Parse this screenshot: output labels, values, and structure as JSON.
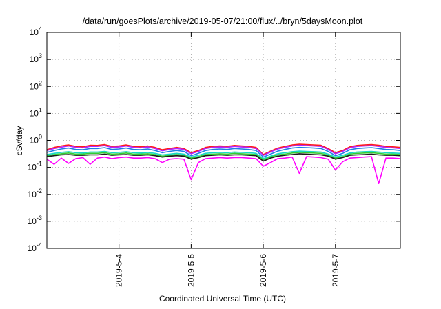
{
  "chart_data": {
    "type": "line",
    "title": "/data/run/goesPlots/archive/2019-05-07/21:00/flux/../bryn/5daysMoon.plot",
    "xlabel": "Coordinated Universal Time (UTC)",
    "ylabel": "cSv/day",
    "yscale": "log",
    "ylim": [
      0.0001,
      10000
    ],
    "xlim": [
      3.0,
      7.9
    ],
    "x_units": "days of May 2019",
    "grid": true,
    "legend": "none",
    "y_ticks": [
      {
        "base": "10",
        "exp": "-4",
        "value": 0.0001
      },
      {
        "base": "10",
        "exp": "-3",
        "value": 0.001
      },
      {
        "base": "10",
        "exp": "-2",
        "value": 0.01
      },
      {
        "base": "10",
        "exp": "-1",
        "value": 0.1
      },
      {
        "base": "10",
        "exp": "0",
        "value": 1
      },
      {
        "base": "10",
        "exp": "1",
        "value": 10
      },
      {
        "base": "10",
        "exp": "2",
        "value": 100
      },
      {
        "base": "10",
        "exp": "3",
        "value": 1000
      },
      {
        "base": "10",
        "exp": "4",
        "value": 10000
      }
    ],
    "x_ticks": [
      {
        "label": "2019-5-4",
        "value": 4
      },
      {
        "label": "2019-5-5",
        "value": 5
      },
      {
        "label": "2019-5-6",
        "value": 6
      },
      {
        "label": "2019-5-7",
        "value": 7
      }
    ],
    "x": [
      3.0,
      3.1,
      3.2,
      3.3,
      3.4,
      3.5,
      3.6,
      3.7,
      3.8,
      3.9,
      4.0,
      4.1,
      4.2,
      4.3,
      4.4,
      4.5,
      4.6,
      4.7,
      4.8,
      4.9,
      5.0,
      5.1,
      5.2,
      5.3,
      5.4,
      5.5,
      5.6,
      5.7,
      5.8,
      5.9,
      6.0,
      6.1,
      6.2,
      6.3,
      6.4,
      6.5,
      6.6,
      6.7,
      6.8,
      6.9,
      7.0,
      7.1,
      7.2,
      7.3,
      7.4,
      7.5,
      7.6,
      7.7,
      7.8,
      7.9
    ],
    "series": [
      {
        "color": "#ff1a1a",
        "values": [
          0.45,
          0.55,
          0.62,
          0.68,
          0.6,
          0.58,
          0.66,
          0.65,
          0.7,
          0.6,
          0.62,
          0.68,
          0.6,
          0.58,
          0.62,
          0.55,
          0.45,
          0.5,
          0.55,
          0.5,
          0.35,
          0.42,
          0.55,
          0.6,
          0.62,
          0.6,
          0.65,
          0.62,
          0.6,
          0.55,
          0.3,
          0.4,
          0.52,
          0.6,
          0.68,
          0.72,
          0.7,
          0.68,
          0.66,
          0.5,
          0.35,
          0.42,
          0.58,
          0.65,
          0.68,
          0.7,
          0.66,
          0.6,
          0.58,
          0.55
        ]
      },
      {
        "color": "#b026ff",
        "values": [
          0.42,
          0.5,
          0.56,
          0.62,
          0.55,
          0.53,
          0.6,
          0.6,
          0.64,
          0.55,
          0.57,
          0.62,
          0.55,
          0.53,
          0.57,
          0.5,
          0.41,
          0.46,
          0.5,
          0.46,
          0.32,
          0.39,
          0.5,
          0.55,
          0.57,
          0.55,
          0.6,
          0.57,
          0.55,
          0.5,
          0.28,
          0.37,
          0.48,
          0.55,
          0.62,
          0.66,
          0.64,
          0.62,
          0.6,
          0.46,
          0.32,
          0.39,
          0.53,
          0.6,
          0.62,
          0.64,
          0.6,
          0.55,
          0.53,
          0.5
        ]
      },
      {
        "color": "#1c7fe6",
        "values": [
          0.36,
          0.42,
          0.48,
          0.52,
          0.46,
          0.45,
          0.5,
          0.5,
          0.54,
          0.46,
          0.48,
          0.52,
          0.46,
          0.45,
          0.48,
          0.42,
          0.35,
          0.39,
          0.42,
          0.39,
          0.27,
          0.33,
          0.42,
          0.46,
          0.48,
          0.46,
          0.5,
          0.48,
          0.46,
          0.42,
          0.24,
          0.31,
          0.4,
          0.46,
          0.52,
          0.55,
          0.54,
          0.52,
          0.5,
          0.39,
          0.27,
          0.33,
          0.45,
          0.5,
          0.52,
          0.54,
          0.5,
          0.46,
          0.45,
          0.42
        ]
      },
      {
        "color": "#19d9c6",
        "values": [
          0.3,
          0.33,
          0.36,
          0.38,
          0.35,
          0.34,
          0.37,
          0.37,
          0.39,
          0.35,
          0.36,
          0.38,
          0.35,
          0.34,
          0.36,
          0.33,
          0.29,
          0.31,
          0.33,
          0.31,
          0.24,
          0.28,
          0.33,
          0.35,
          0.36,
          0.35,
          0.37,
          0.36,
          0.35,
          0.33,
          0.21,
          0.26,
          0.32,
          0.35,
          0.38,
          0.4,
          0.39,
          0.38,
          0.37,
          0.31,
          0.24,
          0.28,
          0.34,
          0.37,
          0.38,
          0.39,
          0.37,
          0.35,
          0.34,
          0.33
        ]
      },
      {
        "color": "#33cc33",
        "values": [
          0.27,
          0.3,
          0.32,
          0.34,
          0.31,
          0.31,
          0.33,
          0.33,
          0.35,
          0.31,
          0.32,
          0.34,
          0.31,
          0.31,
          0.32,
          0.3,
          0.26,
          0.28,
          0.3,
          0.28,
          0.22,
          0.25,
          0.3,
          0.31,
          0.32,
          0.31,
          0.33,
          0.32,
          0.31,
          0.3,
          0.19,
          0.24,
          0.29,
          0.31,
          0.34,
          0.36,
          0.35,
          0.34,
          0.33,
          0.28,
          0.22,
          0.25,
          0.31,
          0.33,
          0.34,
          0.35,
          0.33,
          0.31,
          0.31,
          0.3
        ]
      },
      {
        "color": "#1a1a1a",
        "values": [
          0.25,
          0.27,
          0.29,
          0.3,
          0.28,
          0.28,
          0.29,
          0.29,
          0.31,
          0.28,
          0.29,
          0.3,
          0.28,
          0.28,
          0.29,
          0.27,
          0.24,
          0.26,
          0.27,
          0.26,
          0.2,
          0.23,
          0.27,
          0.28,
          0.29,
          0.28,
          0.29,
          0.29,
          0.28,
          0.27,
          0.17,
          0.22,
          0.26,
          0.28,
          0.3,
          0.32,
          0.31,
          0.3,
          0.29,
          0.26,
          0.2,
          0.23,
          0.28,
          0.29,
          0.3,
          0.31,
          0.29,
          0.28,
          0.28,
          0.27
        ]
      },
      {
        "color": "#ff00ff",
        "values": [
          0.2,
          0.13,
          0.22,
          0.14,
          0.21,
          0.23,
          0.13,
          0.22,
          0.24,
          0.21,
          0.23,
          0.24,
          0.22,
          0.22,
          0.23,
          0.21,
          0.15,
          0.2,
          0.21,
          0.2,
          0.035,
          0.15,
          0.21,
          0.22,
          0.23,
          0.22,
          0.23,
          0.23,
          0.22,
          0.21,
          0.11,
          0.15,
          0.21,
          0.22,
          0.24,
          0.06,
          0.25,
          0.24,
          0.23,
          0.2,
          0.08,
          0.16,
          0.22,
          0.23,
          0.24,
          0.25,
          0.025,
          0.22,
          0.22,
          0.21
        ]
      }
    ]
  }
}
